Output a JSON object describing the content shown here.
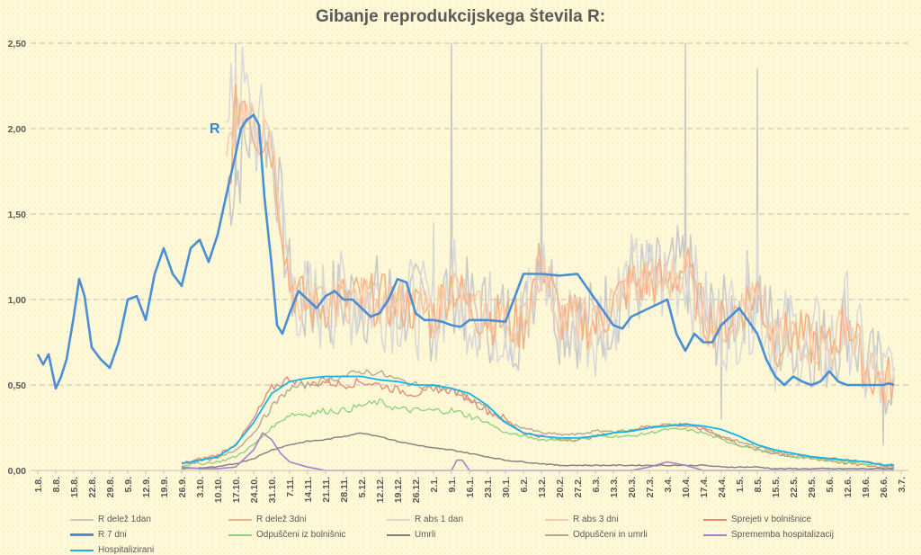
{
  "chart_data": {
    "type": "line",
    "title": "Gibanje reprodukcijskega števila R:",
    "annotation": "R",
    "ylim": [
      0,
      2.5
    ],
    "y_ticks": [
      "0,00",
      "0,50",
      "1,00",
      "1,50",
      "2,00",
      "2,50"
    ],
    "grid": "horizontal dashed",
    "legend_position": "bottom",
    "x_tick_labels": [
      "1.8.",
      "8.8.",
      "15.8.",
      "22.8.",
      "29.8.",
      "5.9.",
      "12.9.",
      "19.9.",
      "26.9.",
      "3.10.",
      "10.10.",
      "17.10.",
      "24.10.",
      "31.10.",
      "7.11.",
      "14.11.",
      "21.11.",
      "28.11.",
      "5.12.",
      "12.12.",
      "19.12.",
      "26.12.",
      "2.1.",
      "9.1.",
      "16.1.",
      "23.1.",
      "30.1.",
      "6.2.",
      "13.2.",
      "20.2.",
      "27.2.",
      "6.3.",
      "13.3.",
      "20.3.",
      "27.3.",
      "3.4.",
      "10.4.",
      "17.4.",
      "24.4.",
      "1.5.",
      "8.5.",
      "15.5.",
      "22.5.",
      "29.5.",
      "5.6.",
      "12.6.",
      "19.6.",
      "26.6.",
      "3.7."
    ],
    "series": [
      {
        "name": "R delež 1dan",
        "color": "#c9c9c9",
        "width": 1.6,
        "noise": 0.28,
        "spikes": [
          [
            11,
            2.5
          ],
          [
            23,
            2.5
          ],
          [
            28,
            2.5
          ],
          [
            36,
            2.5
          ],
          [
            40,
            2.35
          ],
          [
            38,
            0.3
          ],
          [
            47,
            0.15
          ]
        ],
        "x": [
          10.5,
          11,
          11.5,
          12,
          13,
          14,
          15,
          17,
          19,
          21,
          22,
          23,
          24,
          25,
          27,
          28,
          29,
          31,
          33,
          35,
          36,
          37,
          38,
          40,
          41,
          42,
          44,
          45,
          46,
          47,
          47.6
        ],
        "values": [
          1.6,
          1.7,
          1.9,
          2.0,
          1.95,
          1.1,
          0.95,
          1.0,
          1.0,
          0.95,
          0.9,
          1.1,
          0.95,
          0.9,
          0.85,
          1.3,
          0.9,
          0.85,
          1.1,
          1.1,
          1.2,
          0.9,
          0.85,
          1.1,
          0.75,
          0.8,
          0.7,
          0.9,
          0.6,
          0.55,
          0.6
        ]
      },
      {
        "name": "R delež 3dni",
        "color": "#f4b183",
        "width": 1.6,
        "noise": 0.16,
        "spikes": [],
        "x": [
          10.5,
          11,
          11.5,
          12,
          13,
          14,
          15,
          17,
          19,
          21,
          22,
          23,
          24,
          25,
          27,
          28,
          29,
          31,
          33,
          35,
          36,
          37,
          38,
          40,
          41,
          42,
          44,
          45,
          46,
          47,
          47.6
        ],
        "values": [
          1.55,
          2.1,
          2.2,
          2.0,
          1.9,
          1.1,
          0.95,
          1.0,
          1.0,
          0.95,
          0.9,
          1.1,
          0.95,
          0.9,
          0.85,
          1.25,
          0.9,
          0.85,
          1.1,
          1.1,
          1.2,
          0.9,
          0.85,
          1.05,
          0.75,
          0.8,
          0.7,
          0.9,
          0.6,
          0.5,
          0.55
        ]
      },
      {
        "name": "R abs 1 dan",
        "color": "#d9d9d9",
        "width": 1.6,
        "noise": 0.3,
        "spikes": [
          [
            11,
            2.45
          ],
          [
            22,
            1.45
          ],
          [
            40,
            1.5
          ]
        ],
        "x": [
          10.5,
          11,
          11.5,
          12,
          13,
          14,
          15,
          17,
          19,
          21,
          22,
          23,
          24,
          25,
          27,
          28,
          29,
          31,
          33,
          35,
          36,
          37,
          38,
          40,
          41,
          42,
          44,
          45,
          46,
          47,
          47.6
        ],
        "values": [
          1.9,
          2.3,
          2.2,
          2.0,
          1.95,
          1.1,
          0.95,
          1.0,
          1.0,
          0.95,
          0.9,
          1.1,
          0.95,
          0.9,
          0.85,
          1.2,
          0.9,
          0.85,
          1.1,
          1.1,
          1.2,
          0.9,
          0.85,
          1.0,
          0.75,
          0.8,
          0.7,
          0.9,
          0.6,
          0.5,
          0.55
        ]
      },
      {
        "name": "R abs 3 dni",
        "color": "#f8cbad",
        "width": 1.6,
        "noise": 0.14,
        "spikes": [],
        "x": [
          10.5,
          11,
          11.5,
          12,
          13,
          14,
          15,
          17,
          19,
          21,
          22,
          23,
          24,
          25,
          27,
          28,
          29,
          31,
          33,
          35,
          36,
          37,
          38,
          40,
          41,
          42,
          44,
          45,
          46,
          47,
          47.6
        ],
        "values": [
          1.8,
          2.1,
          2.1,
          2.0,
          1.9,
          1.1,
          0.95,
          1.0,
          1.0,
          0.95,
          0.9,
          1.1,
          0.95,
          0.9,
          0.85,
          1.2,
          0.9,
          0.85,
          1.1,
          1.1,
          1.2,
          0.9,
          0.85,
          1.0,
          0.75,
          0.8,
          0.7,
          0.9,
          0.6,
          0.5,
          0.55
        ]
      },
      {
        "name": "Sprejeti v bolnišnice",
        "color": "#e98a70",
        "width": 1.4,
        "noise": 0.025,
        "spikes": [],
        "x": [
          8,
          10,
          11,
          12,
          13,
          14,
          15,
          16,
          17,
          18,
          19,
          20,
          21,
          22,
          23,
          24,
          25,
          26,
          27,
          28,
          29,
          30,
          31,
          32,
          33,
          34,
          35,
          36,
          37,
          38,
          39,
          40,
          41,
          42,
          43,
          44,
          45,
          46,
          47,
          47.6
        ],
        "values": [
          0.04,
          0.09,
          0.15,
          0.3,
          0.48,
          0.54,
          0.5,
          0.52,
          0.5,
          0.52,
          0.5,
          0.47,
          0.45,
          0.48,
          0.47,
          0.42,
          0.35,
          0.3,
          0.22,
          0.2,
          0.18,
          0.18,
          0.2,
          0.22,
          0.24,
          0.26,
          0.27,
          0.26,
          0.24,
          0.2,
          0.15,
          0.12,
          0.1,
          0.08,
          0.07,
          0.06,
          0.04,
          0.03,
          0.02,
          0.02
        ]
      },
      {
        "name": "R 7 dni",
        "color": "#4a8fd4",
        "width": 2.6,
        "noise": 0,
        "spikes": [],
        "x": [
          0,
          0.3,
          0.6,
          1,
          1.3,
          1.6,
          2,
          2.3,
          2.6,
          3,
          3.5,
          4,
          4.5,
          5,
          5.5,
          6,
          6.5,
          7,
          7.5,
          8,
          8.5,
          9,
          9.5,
          10,
          10.5,
          11,
          11.3,
          11.6,
          12,
          12.3,
          12.6,
          13,
          13.3,
          13.6,
          14,
          14.5,
          15,
          15.5,
          16,
          16.5,
          17,
          17.5,
          18,
          18.5,
          19,
          19.5,
          20,
          20.5,
          21,
          21.5,
          22,
          22.5,
          23,
          23.5,
          24,
          25,
          26,
          27,
          28,
          29,
          30,
          31,
          32,
          32.5,
          33,
          34,
          35,
          35.5,
          36,
          36.5,
          37,
          37.5,
          38,
          39,
          40,
          40.5,
          41,
          41.5,
          42,
          42.5,
          43,
          43.5,
          44,
          44.5,
          45,
          45.5,
          46,
          46.5,
          47,
          47.3,
          47.6
        ],
        "values": [
          0.68,
          0.62,
          0.68,
          0.48,
          0.55,
          0.65,
          0.9,
          1.12,
          1.02,
          0.72,
          0.65,
          0.6,
          0.75,
          1.0,
          1.02,
          0.88,
          1.15,
          1.3,
          1.15,
          1.08,
          1.3,
          1.35,
          1.22,
          1.38,
          1.62,
          1.85,
          2.0,
          2.05,
          2.08,
          2.02,
          1.6,
          1.2,
          0.85,
          0.8,
          0.92,
          1.05,
          1.0,
          0.95,
          1.02,
          1.05,
          1.0,
          1.0,
          0.95,
          0.9,
          0.92,
          1.0,
          1.12,
          1.1,
          0.92,
          0.88,
          0.88,
          0.87,
          0.85,
          0.84,
          0.88,
          0.88,
          0.87,
          1.15,
          1.15,
          1.14,
          1.15,
          1.0,
          0.85,
          0.83,
          0.9,
          0.95,
          1.0,
          0.8,
          0.7,
          0.8,
          0.75,
          0.75,
          0.85,
          0.95,
          0.8,
          0.65,
          0.55,
          0.5,
          0.55,
          0.52,
          0.5,
          0.52,
          0.58,
          0.52,
          0.5,
          0.5,
          0.5,
          0.5,
          0.5,
          0.51,
          0.5
        ]
      },
      {
        "name": "Odpuščeni iz bolnišnic",
        "color": "#93d283",
        "width": 1.4,
        "noise": 0.02,
        "spikes": [],
        "x": [
          8,
          10,
          11,
          12,
          13,
          14,
          15,
          16,
          17,
          18,
          19,
          20,
          21,
          22,
          23,
          24,
          25,
          26,
          27,
          28,
          29,
          30,
          31,
          32,
          33,
          34,
          35,
          36,
          37,
          38,
          39,
          40,
          41,
          42,
          43,
          44,
          45,
          46,
          47,
          47.6
        ],
        "values": [
          0.03,
          0.05,
          0.08,
          0.15,
          0.25,
          0.33,
          0.33,
          0.35,
          0.35,
          0.38,
          0.4,
          0.36,
          0.35,
          0.35,
          0.35,
          0.32,
          0.28,
          0.22,
          0.2,
          0.18,
          0.18,
          0.18,
          0.2,
          0.2,
          0.2,
          0.22,
          0.24,
          0.24,
          0.22,
          0.18,
          0.15,
          0.12,
          0.1,
          0.08,
          0.07,
          0.06,
          0.05,
          0.04,
          0.03,
          0.03
        ]
      },
      {
        "name": "Umrli",
        "color": "#7f7f7f",
        "width": 1.4,
        "noise": 0.008,
        "spikes": [],
        "x": [
          8,
          10,
          11,
          12,
          13,
          14,
          15,
          16,
          17,
          18,
          19,
          20,
          21,
          22,
          23,
          24,
          25,
          26,
          27,
          28,
          29,
          30,
          31,
          32,
          33,
          34,
          35,
          36,
          37,
          38,
          39,
          40,
          41,
          42,
          43,
          44,
          45,
          46,
          47,
          47.6
        ],
        "values": [
          0.01,
          0.02,
          0.04,
          0.07,
          0.12,
          0.15,
          0.17,
          0.18,
          0.2,
          0.22,
          0.2,
          0.17,
          0.15,
          0.13,
          0.12,
          0.1,
          0.08,
          0.06,
          0.05,
          0.04,
          0.03,
          0.03,
          0.03,
          0.03,
          0.03,
          0.03,
          0.03,
          0.03,
          0.03,
          0.02,
          0.02,
          0.02,
          0.01,
          0.01,
          0.01,
          0.01,
          0.01,
          0.01,
          0.01,
          0.01
        ]
      },
      {
        "name": "Odpuščeni in umrli",
        "color": "#b7a894",
        "width": 1.4,
        "noise": 0.02,
        "spikes": [],
        "x": [
          8,
          10,
          11,
          12,
          13,
          14,
          15,
          16,
          17,
          18,
          19,
          20,
          21,
          22,
          23,
          24,
          25,
          26,
          27,
          28,
          29,
          30,
          31,
          32,
          33,
          34,
          35,
          36,
          37,
          38,
          39,
          40,
          41,
          42,
          43,
          44,
          45,
          46,
          47,
          47.6
        ],
        "values": [
          0.04,
          0.07,
          0.12,
          0.22,
          0.37,
          0.48,
          0.5,
          0.53,
          0.55,
          0.58,
          0.57,
          0.53,
          0.5,
          0.48,
          0.47,
          0.42,
          0.36,
          0.28,
          0.25,
          0.22,
          0.21,
          0.21,
          0.23,
          0.23,
          0.23,
          0.25,
          0.27,
          0.27,
          0.25,
          0.2,
          0.17,
          0.14,
          0.11,
          0.09,
          0.08,
          0.07,
          0.06,
          0.05,
          0.04,
          0.03
        ]
      },
      {
        "name": "Sprememba hospitalizacij",
        "color": "#a882c9",
        "width": 1.6,
        "noise": 0,
        "spikes": [],
        "x": [
          8,
          9,
          10,
          11,
          12,
          12.5,
          13,
          13.5,
          14,
          15,
          16,
          17,
          18,
          19,
          20,
          21,
          22,
          23,
          23.3,
          23.6,
          24,
          25,
          30,
          33,
          34,
          35,
          35.5,
          36,
          37,
          38,
          40,
          45,
          47,
          47.6
        ],
        "values": [
          0.02,
          0.01,
          0.01,
          0.02,
          0.12,
          0.22,
          0.18,
          0.1,
          0.05,
          0.02,
          0.0,
          0.0,
          0.0,
          0.0,
          0.0,
          0.0,
          0.0,
          0.0,
          0.06,
          0.06,
          0.0,
          0.0,
          0.0,
          0.0,
          0.02,
          0.05,
          0.04,
          0.03,
          0.0,
          0.0,
          0.0,
          0.0,
          0.0,
          0.0
        ]
      },
      {
        "name": "Hospitalizirani",
        "color": "#1ab3e8",
        "width": 1.8,
        "noise": 0,
        "spikes": [],
        "x": [
          8,
          10,
          11,
          12,
          13,
          14,
          15,
          16,
          17,
          18,
          19,
          20,
          21,
          22,
          23,
          24,
          25,
          26,
          27,
          28,
          29,
          30,
          31,
          32,
          33,
          34,
          35,
          36,
          37,
          38,
          39,
          40,
          41,
          42,
          43,
          44,
          45,
          46,
          47,
          47.6
        ],
        "values": [
          0.04,
          0.08,
          0.15,
          0.28,
          0.45,
          0.52,
          0.54,
          0.55,
          0.55,
          0.55,
          0.53,
          0.52,
          0.5,
          0.5,
          0.48,
          0.45,
          0.38,
          0.28,
          0.22,
          0.2,
          0.19,
          0.19,
          0.2,
          0.22,
          0.23,
          0.25,
          0.26,
          0.27,
          0.26,
          0.24,
          0.2,
          0.15,
          0.12,
          0.1,
          0.08,
          0.07,
          0.06,
          0.05,
          0.03,
          0.03
        ]
      }
    ]
  }
}
